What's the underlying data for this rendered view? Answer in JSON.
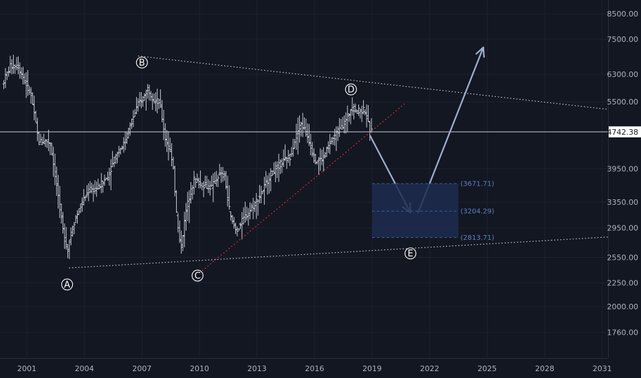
{
  "colors": {
    "background": "#131722",
    "candle": "#c8ccd6",
    "grid": "#1e2230",
    "axis_text": "#b2b5be",
    "trendline_dotted": "#c9cbd2",
    "support_line_red": "#d12a3a",
    "arrow": "#9fb0cf",
    "box_fill": "#1d2c4f",
    "box_border": "#3c5a99",
    "box_text": "#5d7fc4",
    "price_tag_bg": "#ffffff",
    "price_tag_text": "#131722"
  },
  "chart_data": {
    "type": "line",
    "title": "",
    "xlabel": "",
    "ylabel": "",
    "y_scale": "log",
    "ylim": [
      1550,
      9100
    ],
    "xlim": [
      1999.6,
      2031.3
    ],
    "x_ticks": [
      "2001",
      "2004",
      "2007",
      "2010",
      "2013",
      "2016",
      "2019",
      "2022",
      "2025",
      "2028",
      "2031"
    ],
    "y_ticks": [
      "8500.00",
      "7500.00",
      "6300.00",
      "5500.00",
      "3950.00",
      "3350.00",
      "2950.00",
      "2550.00",
      "2250.00",
      "2000.00",
      "1760.00"
    ],
    "current_price": {
      "label": "4742.38",
      "value": 4742.38
    },
    "series": [
      {
        "values": [
          [
            1999.8,
            6000
          ],
          [
            2000.2,
            6550
          ],
          [
            2000.6,
            6600
          ],
          [
            2000.9,
            6200
          ],
          [
            2001.3,
            5700
          ],
          [
            2001.7,
            4500
          ],
          [
            2002.0,
            4550
          ],
          [
            2002.3,
            4500
          ],
          [
            2002.7,
            3500
          ],
          [
            2003.0,
            2850
          ],
          [
            2003.2,
            2650
          ],
          [
            2003.5,
            3000
          ],
          [
            2003.9,
            3300
          ],
          [
            2004.3,
            3550
          ],
          [
            2004.8,
            3600
          ],
          [
            2005.3,
            3800
          ],
          [
            2005.8,
            4300
          ],
          [
            2006.2,
            4500
          ],
          [
            2006.5,
            4950
          ],
          [
            2006.9,
            5450
          ],
          [
            2007.2,
            5650
          ],
          [
            2007.4,
            5900
          ],
          [
            2007.7,
            5550
          ],
          [
            2008.0,
            5500
          ],
          [
            2008.3,
            4600
          ],
          [
            2008.7,
            4100
          ],
          [
            2008.9,
            3100
          ],
          [
            2009.1,
            2650
          ],
          [
            2009.4,
            3250
          ],
          [
            2009.8,
            3750
          ],
          [
            2010.3,
            3650
          ],
          [
            2010.7,
            3600
          ],
          [
            2011.1,
            3850
          ],
          [
            2011.4,
            3800
          ],
          [
            2011.7,
            3100
          ],
          [
            2012.0,
            2900
          ],
          [
            2012.4,
            3100
          ],
          [
            2012.8,
            3250
          ],
          [
            2013.3,
            3500
          ],
          [
            2013.8,
            3850
          ],
          [
            2014.3,
            4050
          ],
          [
            2014.8,
            4200
          ],
          [
            2015.2,
            4750
          ],
          [
            2015.4,
            4950
          ],
          [
            2015.8,
            4550
          ],
          [
            2016.1,
            4100
          ],
          [
            2016.5,
            4150
          ],
          [
            2016.9,
            4500
          ],
          [
            2017.3,
            4750
          ],
          [
            2017.7,
            5000
          ],
          [
            2018.0,
            5350
          ],
          [
            2018.4,
            5250
          ],
          [
            2018.7,
            5300
          ],
          [
            2018.9,
            4900
          ],
          [
            2019.0,
            4742
          ]
        ]
      }
    ],
    "wave_labels": [
      {
        "label": "A",
        "x": 2003.1,
        "y": 2230
      },
      {
        "label": "B",
        "x": 2007.0,
        "y": 6680
      },
      {
        "label": "C",
        "x": 2009.9,
        "y": 2330
      },
      {
        "label": "D",
        "x": 2017.9,
        "y": 5850
      },
      {
        "label": "E",
        "x": 2021.0,
        "y": 2600
      }
    ],
    "upper_trendline": [
      [
        2006.8,
        6900
      ],
      [
        2031.3,
        5300
      ]
    ],
    "lower_trendline": [
      [
        2003.2,
        2420
      ],
      [
        2031.3,
        2820
      ]
    ],
    "red_support_line": [
      [
        2010.0,
        2360
      ],
      [
        2020.7,
        5450
      ]
    ],
    "target_box": {
      "x_start": 2019.0,
      "x_end": 2023.5,
      "upper": 3671.71,
      "mid": 3204.29,
      "lower": 2813.71,
      "labels": [
        "(3671.71)",
        "(3204.29)",
        "(2813.71)"
      ]
    },
    "projection_arrows": [
      [
        [
          2018.9,
          4650
        ],
        [
          2021.0,
          3180
        ]
      ],
      [
        [
          2021.4,
          3180
        ],
        [
          2024.8,
          7200
        ]
      ]
    ]
  }
}
